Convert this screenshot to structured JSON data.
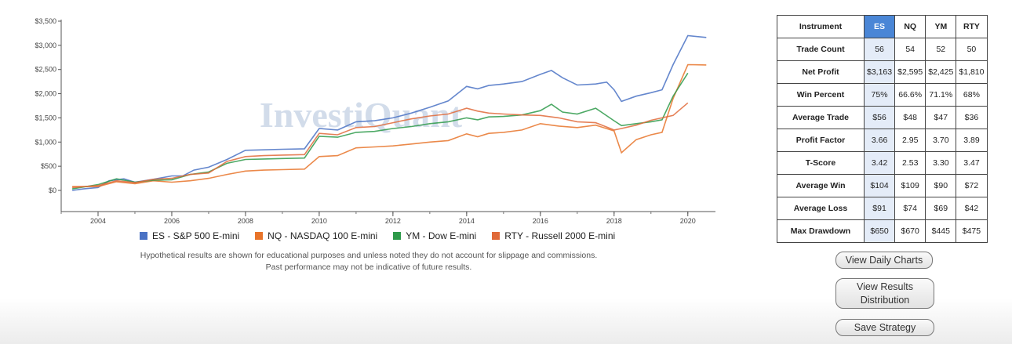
{
  "watermark": "InvestiQuant",
  "chart_data": {
    "type": "line",
    "y_ticks": [
      "$0",
      "$500",
      "$1,000",
      "$1,500",
      "$2,000",
      "$2,500",
      "$3,000",
      "$3,500"
    ],
    "y_tick_values": [
      0,
      500,
      1000,
      1500,
      2000,
      2500,
      3000,
      3500
    ],
    "x_ticks": [
      "2004",
      "2006",
      "2008",
      "2010",
      "2012",
      "2014",
      "2016",
      "2018",
      "2020"
    ],
    "x_tick_values": [
      2004,
      2006,
      2008,
      2010,
      2012,
      2014,
      2016,
      2018,
      2020
    ],
    "xlim": [
      2003.0,
      2020.75
    ],
    "ylim": [
      -400,
      3600
    ],
    "series": [
      {
        "name": "ES - S&P 500 E-mini",
        "color": "#4a72c4",
        "points": [
          [
            2003.3,
            0
          ],
          [
            2003.6,
            30
          ],
          [
            2004.0,
            60
          ],
          [
            2004.3,
            200
          ],
          [
            2004.7,
            240
          ],
          [
            2005.0,
            170
          ],
          [
            2005.5,
            230
          ],
          [
            2006.0,
            300
          ],
          [
            2006.3,
            300
          ],
          [
            2006.6,
            420
          ],
          [
            2007.0,
            480
          ],
          [
            2007.5,
            640
          ],
          [
            2008.0,
            830
          ],
          [
            2008.5,
            840
          ],
          [
            2009.0,
            850
          ],
          [
            2009.6,
            860
          ],
          [
            2010.0,
            1280
          ],
          [
            2010.5,
            1250
          ],
          [
            2011.0,
            1420
          ],
          [
            2011.5,
            1440
          ],
          [
            2012.0,
            1500
          ],
          [
            2012.5,
            1600
          ],
          [
            2013.0,
            1720
          ],
          [
            2013.5,
            1850
          ],
          [
            2014.0,
            2150
          ],
          [
            2014.3,
            2100
          ],
          [
            2014.6,
            2170
          ],
          [
            2015.0,
            2200
          ],
          [
            2015.5,
            2250
          ],
          [
            2016.0,
            2400
          ],
          [
            2016.3,
            2480
          ],
          [
            2016.6,
            2330
          ],
          [
            2017.0,
            2180
          ],
          [
            2017.5,
            2200
          ],
          [
            2017.8,
            2240
          ],
          [
            2018.0,
            2080
          ],
          [
            2018.2,
            1840
          ],
          [
            2018.6,
            1950
          ],
          [
            2019.0,
            2020
          ],
          [
            2019.3,
            2080
          ],
          [
            2019.6,
            2600
          ],
          [
            2020.0,
            3200
          ],
          [
            2020.5,
            3163
          ]
        ]
      },
      {
        "name": "NQ - NASDAQ 100 E-mini",
        "color": "#e8742a",
        "points": [
          [
            2003.3,
            80
          ],
          [
            2004.0,
            80
          ],
          [
            2004.5,
            180
          ],
          [
            2005.0,
            140
          ],
          [
            2005.5,
            200
          ],
          [
            2006.0,
            170
          ],
          [
            2006.5,
            200
          ],
          [
            2007.0,
            250
          ],
          [
            2007.5,
            330
          ],
          [
            2008.0,
            400
          ],
          [
            2008.5,
            420
          ],
          [
            2009.0,
            430
          ],
          [
            2009.6,
            440
          ],
          [
            2010.0,
            700
          ],
          [
            2010.5,
            720
          ],
          [
            2011.0,
            880
          ],
          [
            2011.5,
            900
          ],
          [
            2012.0,
            920
          ],
          [
            2012.5,
            960
          ],
          [
            2013.0,
            1000
          ],
          [
            2013.5,
            1030
          ],
          [
            2014.0,
            1170
          ],
          [
            2014.3,
            1110
          ],
          [
            2014.6,
            1180
          ],
          [
            2015.0,
            1200
          ],
          [
            2015.5,
            1250
          ],
          [
            2016.0,
            1380
          ],
          [
            2016.5,
            1330
          ],
          [
            2017.0,
            1300
          ],
          [
            2017.5,
            1350
          ],
          [
            2018.0,
            1230
          ],
          [
            2018.2,
            780
          ],
          [
            2018.6,
            1050
          ],
          [
            2019.0,
            1150
          ],
          [
            2019.3,
            1200
          ],
          [
            2019.6,
            1900
          ],
          [
            2020.0,
            2600
          ],
          [
            2020.5,
            2595
          ]
        ]
      },
      {
        "name": "YM - Dow E-mini",
        "color": "#2e9a4a",
        "points": [
          [
            2003.3,
            30
          ],
          [
            2004.0,
            120
          ],
          [
            2004.5,
            240
          ],
          [
            2005.0,
            170
          ],
          [
            2005.5,
            210
          ],
          [
            2006.0,
            220
          ],
          [
            2006.5,
            330
          ],
          [
            2007.0,
            380
          ],
          [
            2007.5,
            560
          ],
          [
            2008.0,
            640
          ],
          [
            2008.5,
            650
          ],
          [
            2009.0,
            660
          ],
          [
            2009.6,
            670
          ],
          [
            2010.0,
            1120
          ],
          [
            2010.5,
            1100
          ],
          [
            2011.0,
            1200
          ],
          [
            2011.5,
            1220
          ],
          [
            2012.0,
            1280
          ],
          [
            2012.5,
            1320
          ],
          [
            2013.0,
            1380
          ],
          [
            2013.5,
            1420
          ],
          [
            2014.0,
            1500
          ],
          [
            2014.3,
            1460
          ],
          [
            2014.6,
            1520
          ],
          [
            2015.0,
            1530
          ],
          [
            2015.5,
            1560
          ],
          [
            2016.0,
            1650
          ],
          [
            2016.3,
            1780
          ],
          [
            2016.6,
            1620
          ],
          [
            2017.0,
            1580
          ],
          [
            2017.5,
            1700
          ],
          [
            2018.0,
            1440
          ],
          [
            2018.2,
            1340
          ],
          [
            2018.6,
            1380
          ],
          [
            2019.0,
            1420
          ],
          [
            2019.3,
            1460
          ],
          [
            2019.6,
            1950
          ],
          [
            2020.0,
            2425
          ]
        ]
      },
      {
        "name": "RTY - Russell 2000 E-mini",
        "color": "#e06a3a",
        "points": [
          [
            2003.3,
            60
          ],
          [
            2004.0,
            100
          ],
          [
            2004.5,
            200
          ],
          [
            2005.0,
            160
          ],
          [
            2005.5,
            230
          ],
          [
            2006.0,
            250
          ],
          [
            2006.5,
            330
          ],
          [
            2007.0,
            360
          ],
          [
            2007.5,
            600
          ],
          [
            2008.0,
            700
          ],
          [
            2008.5,
            720
          ],
          [
            2009.0,
            730
          ],
          [
            2009.6,
            740
          ],
          [
            2010.0,
            1180
          ],
          [
            2010.5,
            1150
          ],
          [
            2011.0,
            1300
          ],
          [
            2011.5,
            1320
          ],
          [
            2012.0,
            1400
          ],
          [
            2012.5,
            1480
          ],
          [
            2013.0,
            1540
          ],
          [
            2013.5,
            1580
          ],
          [
            2014.0,
            1700
          ],
          [
            2014.3,
            1640
          ],
          [
            2014.6,
            1600
          ],
          [
            2015.0,
            1580
          ],
          [
            2015.5,
            1560
          ],
          [
            2016.0,
            1550
          ],
          [
            2016.5,
            1500
          ],
          [
            2017.0,
            1420
          ],
          [
            2017.5,
            1400
          ],
          [
            2018.0,
            1250
          ],
          [
            2018.2,
            1280
          ],
          [
            2018.6,
            1350
          ],
          [
            2019.0,
            1450
          ],
          [
            2019.6,
            1550
          ],
          [
            2020.0,
            1810
          ]
        ]
      }
    ]
  },
  "disclaimer": {
    "line1": "Hypothetical results are shown for educational purposes and unless noted they do not account for slippage and commissions.",
    "line2": "Past performance may not be indicative of future results."
  },
  "table": {
    "corner": "Instrument",
    "columns": [
      "ES",
      "NQ",
      "YM",
      "RTY"
    ],
    "selected_column": 0,
    "rows": [
      {
        "label": "Trade Count",
        "values": [
          "56",
          "54",
          "52",
          "50"
        ]
      },
      {
        "label": "Net Profit",
        "values": [
          "$3,163",
          "$2,595",
          "$2,425",
          "$1,810"
        ]
      },
      {
        "label": "Win Percent",
        "values": [
          "75%",
          "66.6%",
          "71.1%",
          "68%"
        ]
      },
      {
        "label": "Average Trade",
        "values": [
          "$56",
          "$48",
          "$47",
          "$36"
        ]
      },
      {
        "label": "Profit Factor",
        "values": [
          "3.66",
          "2.95",
          "3.70",
          "3.89"
        ]
      },
      {
        "label": "T-Score",
        "values": [
          "3.42",
          "2.53",
          "3.30",
          "3.47"
        ]
      },
      {
        "label": "Average Win",
        "values": [
          "$104",
          "$109",
          "$90",
          "$72"
        ]
      },
      {
        "label": "Average Loss",
        "values": [
          "$91",
          "$74",
          "$69",
          "$42"
        ]
      },
      {
        "label": "Max Drawdown",
        "values": [
          "$650",
          "$670",
          "$445",
          "$475"
        ]
      }
    ]
  },
  "buttons": {
    "daily_charts": "View Daily Charts",
    "results_line1": "View Results",
    "results_line2": "Distribution",
    "save": "Save Strategy"
  }
}
